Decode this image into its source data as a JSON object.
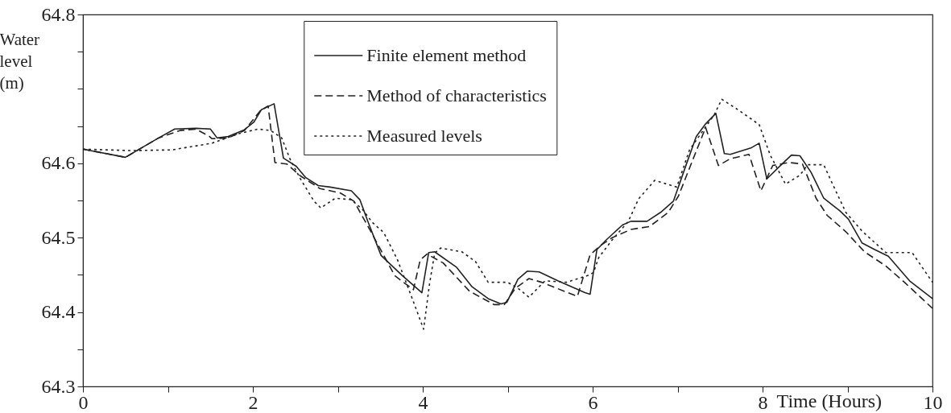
{
  "chart_data": {
    "type": "line",
    "xlabel": "Time (Hours)",
    "ylabel": "Water level (m)",
    "xlim": [
      0,
      10
    ],
    "xticks": [
      0,
      {
        "value": 1,
        "label": null
      },
      2,
      {
        "value": 3,
        "label": null
      },
      4,
      {
        "value": 5,
        "label": null
      },
      6,
      {
        "value": 7,
        "label": null
      },
      8,
      {
        "value": 9,
        "label": null
      },
      10
    ],
    "ylim": [
      64.3,
      64.8
    ],
    "yticks": [
      64.3,
      {
        "value": 64.35,
        "label": null
      },
      64.4,
      {
        "value": 64.45,
        "label": null
      },
      64.5,
      {
        "value": 64.55,
        "label": null
      },
      64.6,
      {
        "value": 64.65,
        "label": null
      },
      {
        "value": 64.7,
        "label": null
      },
      {
        "value": 64.75,
        "label": null
      },
      64.8
    ],
    "legend": "top",
    "grid": false,
    "series": [
      {
        "name": "Finite element method",
        "color": "#222222",
        "line_style": "solid",
        "x": [
          0,
          0.5,
          0.89,
          1.08,
          1.33,
          1.5,
          1.58,
          1.71,
          1.9,
          2.01,
          2.1,
          2.25,
          2.36,
          2.51,
          2.62,
          2.77,
          2.91,
          3.16,
          3.26,
          3.35,
          3.51,
          3.76,
          3.99,
          4.07,
          4.14,
          4.4,
          4.58,
          4.77,
          4.92,
          4.99,
          5.12,
          5.23,
          5.37,
          5.59,
          5.91,
          5.97,
          6.05,
          6.16,
          6.35,
          6.45,
          6.64,
          6.8,
          6.95,
          7.11,
          7.22,
          7.33,
          7.45,
          7.55,
          7.62,
          7.87,
          7.96,
          8.05,
          8.22,
          8.34,
          8.44,
          8.57,
          8.72,
          8.91,
          9.01,
          9.17,
          9.32,
          9.48,
          9.73,
          10
        ],
        "values": [
          64.619,
          64.608,
          64.634,
          64.646,
          64.647,
          64.646,
          64.634,
          64.636,
          64.645,
          64.655,
          64.672,
          64.68,
          64.607,
          64.596,
          64.581,
          64.57,
          64.568,
          64.563,
          64.551,
          64.523,
          64.476,
          64.449,
          64.426,
          64.48,
          64.481,
          64.46,
          64.434,
          64.418,
          64.411,
          64.413,
          64.444,
          64.455,
          64.454,
          64.442,
          64.426,
          64.424,
          64.484,
          64.497,
          64.517,
          64.522,
          64.522,
          64.534,
          64.549,
          64.601,
          64.636,
          64.653,
          64.667,
          64.613,
          64.612,
          64.621,
          64.627,
          64.579,
          64.598,
          64.611,
          64.61,
          64.588,
          64.553,
          64.536,
          64.525,
          64.493,
          64.484,
          64.475,
          64.442,
          64.418
        ]
      },
      {
        "name": "Method of characteristics",
        "color": "#222222",
        "line_style": "dashed",
        "x": [
          0,
          0.5,
          0.89,
          1.14,
          1.33,
          1.49,
          1.52,
          1.71,
          1.9,
          2.09,
          2.18,
          2.26,
          2.4,
          2.56,
          2.79,
          3.03,
          3.19,
          3.38,
          3.67,
          3.89,
          3.97,
          4.05,
          4.24,
          4.55,
          4.84,
          4.96,
          5.09,
          5.25,
          5.4,
          5.82,
          5.97,
          6.1,
          6.23,
          6.45,
          6.67,
          6.89,
          7.01,
          7.18,
          7.33,
          7.48,
          7.62,
          7.84,
          7.98,
          8.12,
          8.31,
          8.47,
          8.63,
          8.76,
          8.98,
          9.2,
          9.45,
          9.67,
          10
        ],
        "values": [
          64.619,
          64.608,
          64.634,
          64.644,
          64.646,
          64.636,
          64.633,
          64.634,
          64.644,
          64.671,
          64.677,
          64.601,
          64.599,
          64.583,
          64.566,
          64.56,
          64.549,
          64.51,
          64.449,
          64.43,
          64.47,
          64.478,
          64.466,
          64.428,
          64.41,
          64.41,
          64.432,
          64.445,
          64.44,
          64.421,
          64.477,
          64.49,
          64.5,
          64.511,
          64.515,
          64.534,
          64.556,
          64.605,
          64.648,
          64.597,
          64.606,
          64.612,
          64.563,
          64.597,
          64.601,
          64.599,
          64.553,
          64.53,
          64.508,
          64.481,
          64.462,
          64.44,
          64.405
        ]
      },
      {
        "name": "Measured levels",
        "color": "#222222",
        "line_style": "dotted",
        "x": [
          0,
          0.57,
          1.05,
          1.52,
          1.84,
          2.06,
          2.21,
          2.34,
          2.44,
          2.56,
          2.72,
          2.8,
          2.97,
          3.16,
          3.29,
          3.41,
          3.54,
          3.7,
          3.87,
          4.01,
          4.08,
          4.14,
          4.21,
          4.46,
          4.62,
          4.77,
          5.0,
          5.12,
          5.25,
          5.44,
          5.69,
          5.94,
          6.01,
          6.07,
          6.23,
          6.42,
          6.54,
          6.73,
          6.99,
          7.14,
          7.33,
          7.43,
          7.52,
          7.71,
          7.96,
          8.09,
          8.27,
          8.44,
          8.53,
          8.72,
          8.82,
          8.98,
          9.17,
          9.45,
          9.76,
          10
        ],
        "values": [
          64.619,
          64.617,
          64.618,
          64.627,
          64.64,
          64.646,
          64.644,
          64.634,
          64.605,
          64.579,
          64.549,
          64.54,
          64.553,
          64.551,
          64.538,
          64.52,
          64.507,
          64.471,
          64.42,
          64.377,
          64.438,
          64.479,
          64.486,
          64.481,
          64.468,
          64.44,
          64.44,
          64.432,
          64.42,
          64.442,
          64.44,
          64.449,
          64.453,
          64.473,
          64.497,
          64.522,
          64.552,
          64.577,
          64.568,
          64.618,
          64.649,
          64.665,
          64.686,
          64.672,
          64.652,
          64.611,
          64.572,
          64.584,
          64.598,
          64.598,
          64.573,
          64.534,
          64.509,
          64.48,
          64.48,
          64.44
        ]
      }
    ]
  }
}
